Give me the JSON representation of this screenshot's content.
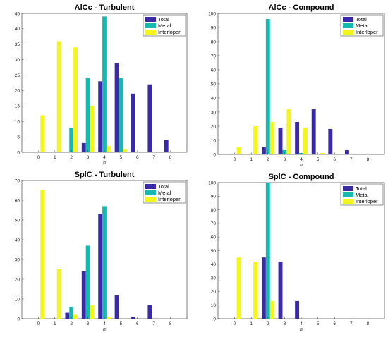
{
  "colors": {
    "Total": "#3a2aa6",
    "Metal": "#18b8b0",
    "Interloper": "#f5f51e"
  },
  "chart_data": [
    {
      "type": "bar",
      "title": "AlCc - Turbulent",
      "xlabel": "n",
      "categories": [
        "0",
        "1",
        "2",
        "3",
        "4",
        "5",
        "6",
        "7",
        "8"
      ],
      "ylim": [
        0,
        45
      ],
      "yticks": [
        0,
        5,
        10,
        15,
        20,
        25,
        30,
        35,
        40,
        45
      ],
      "legend": "top-right",
      "series": [
        {
          "name": "Total",
          "values": [
            0,
            0,
            0,
            3,
            23,
            29,
            19,
            22,
            4
          ]
        },
        {
          "name": "Metal",
          "values": [
            0,
            0,
            8,
            24,
            44,
            24,
            0,
            0,
            0
          ]
        },
        {
          "name": "Interloper",
          "values": [
            12,
            36,
            34,
            15,
            2,
            1,
            0,
            0,
            0
          ]
        }
      ]
    },
    {
      "type": "bar",
      "title": "AlCc - Compound",
      "xlabel": "n",
      "categories": [
        "0",
        "1",
        "2",
        "3",
        "4",
        "5",
        "6",
        "7",
        "8"
      ],
      "ylim": [
        0,
        100
      ],
      "yticks": [
        0,
        10,
        20,
        30,
        40,
        50,
        60,
        70,
        80,
        90,
        100
      ],
      "legend": "top-right",
      "series": [
        {
          "name": "Total",
          "values": [
            0,
            0,
            5,
            19,
            23,
            32,
            18,
            3,
            0
          ]
        },
        {
          "name": "Metal",
          "values": [
            0,
            0,
            96,
            3,
            1,
            0,
            0,
            0,
            0
          ]
        },
        {
          "name": "Interloper",
          "values": [
            5,
            20,
            23,
            32,
            19,
            1,
            0,
            0,
            0
          ]
        }
      ]
    },
    {
      "type": "bar",
      "title": "SplC - Turbulent",
      "xlabel": "n",
      "categories": [
        "0",
        "1",
        "2",
        "3",
        "4",
        "5",
        "6",
        "7",
        "8"
      ],
      "ylim": [
        0,
        70
      ],
      "yticks": [
        0,
        10,
        20,
        30,
        40,
        50,
        60,
        70
      ],
      "legend": "top-right",
      "series": [
        {
          "name": "Total",
          "values": [
            0,
            0,
            3,
            24,
            53,
            12,
            1,
            7,
            0
          ]
        },
        {
          "name": "Metal",
          "values": [
            0,
            0,
            6,
            37,
            57,
            0,
            0,
            0,
            0
          ]
        },
        {
          "name": "Interloper",
          "values": [
            65,
            25,
            2,
            7,
            1,
            0,
            0,
            0,
            0
          ]
        }
      ]
    },
    {
      "type": "bar",
      "title": "SplC - Compound",
      "xlabel": "n",
      "categories": [
        "0",
        "1",
        "2",
        "3",
        "4",
        "5",
        "6",
        "7",
        "8"
      ],
      "ylim": [
        0,
        100
      ],
      "yticks": [
        0,
        10,
        20,
        30,
        40,
        50,
        60,
        70,
        80,
        90,
        100
      ],
      "legend": "top-right",
      "series": [
        {
          "name": "Total",
          "values": [
            0,
            0,
            45,
            42,
            13,
            0,
            0,
            0,
            0
          ]
        },
        {
          "name": "Metal",
          "values": [
            0,
            0,
            100,
            0,
            0,
            0,
            0,
            0,
            0
          ]
        },
        {
          "name": "Interloper",
          "values": [
            45,
            42,
            13,
            0,
            0,
            0,
            0,
            0,
            0
          ]
        }
      ]
    }
  ]
}
